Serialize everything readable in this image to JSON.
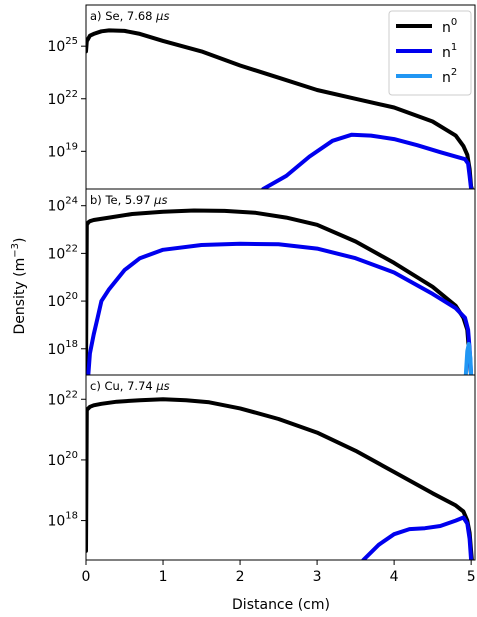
{
  "figure": {
    "ylabel": "Density (m",
    "ylabel_sup": "−3",
    "ylabel_close": ")",
    "xlabel": "Distance (cm)"
  },
  "legend": {
    "placement": "top-right of panel a",
    "entries": [
      {
        "base": "n",
        "sup": "0",
        "color": "#000000"
      },
      {
        "base": "n",
        "sup": "1",
        "color": "#0000ee"
      },
      {
        "base": "n",
        "sup": "2",
        "color": "#2196f3"
      }
    ]
  },
  "chart_data": [
    {
      "type": "line",
      "panel_label": "a) Se, 7.68 ",
      "panel_label_unit": "μs",
      "yscale": "log",
      "xlim": [
        0,
        5.05
      ],
      "ylog10_range": [
        16.85,
        27.35
      ],
      "yticks": [
        {
          "base": "10",
          "exp": "25",
          "value_log10": 25
        },
        {
          "base": "10",
          "exp": "22",
          "value_log10": 22
        },
        {
          "base": "10",
          "exp": "19",
          "value_log10": 19
        }
      ],
      "xticks": [],
      "series": [
        {
          "name": "n⁰",
          "color": "#000000",
          "x": [
            0.0,
            0.01,
            0.02,
            0.05,
            0.1,
            0.2,
            0.3,
            0.5,
            0.7,
            1.0,
            1.5,
            2.0,
            2.5,
            3.0,
            3.5,
            4.0,
            4.5,
            4.8,
            4.9,
            4.95,
            4.98,
            5.0,
            5.01
          ],
          "y_log10": [
            24.7,
            25.3,
            25.35,
            25.6,
            25.7,
            25.85,
            25.9,
            25.87,
            25.7,
            25.3,
            24.7,
            23.9,
            23.2,
            22.5,
            22.0,
            21.5,
            20.7,
            19.9,
            19.3,
            18.8,
            18.0,
            17.0,
            16.85
          ]
        },
        {
          "name": "n¹",
          "color": "#0000ee",
          "x": [
            2.3,
            2.6,
            2.9,
            3.2,
            3.45,
            3.7,
            4.0,
            4.3,
            4.6,
            4.8,
            4.92,
            4.96,
            4.98,
            5.0
          ],
          "y_log10": [
            16.85,
            17.6,
            18.7,
            19.6,
            19.95,
            19.9,
            19.7,
            19.35,
            18.95,
            18.7,
            18.55,
            18.3,
            17.6,
            16.85
          ]
        }
      ]
    },
    {
      "type": "line",
      "panel_label": "b) Te, 5.97 ",
      "panel_label_unit": "μs",
      "yscale": "log",
      "xlim": [
        0,
        5.05
      ],
      "ylog10_range": [
        16.9,
        24.7
      ],
      "yticks": [
        {
          "base": "10",
          "exp": "24",
          "value_log10": 24
        },
        {
          "base": "10",
          "exp": "22",
          "value_log10": 22
        },
        {
          "base": "10",
          "exp": "20",
          "value_log10": 20
        },
        {
          "base": "10",
          "exp": "18",
          "value_log10": 18
        }
      ],
      "xticks": [],
      "series": [
        {
          "name": "n⁰",
          "color": "#000000",
          "x": [
            0.0,
            0.01,
            0.03,
            0.05,
            0.1,
            0.3,
            0.6,
            1.0,
            1.4,
            1.8,
            2.2,
            2.6,
            3.0,
            3.5,
            4.0,
            4.5,
            4.8,
            4.9,
            4.95,
            4.97,
            4.99,
            5.0
          ],
          "y_log10": [
            17.0,
            23.2,
            23.3,
            23.35,
            23.4,
            23.5,
            23.65,
            23.75,
            23.8,
            23.78,
            23.7,
            23.5,
            23.2,
            22.5,
            21.6,
            20.6,
            19.8,
            19.3,
            18.8,
            18.0,
            17.2,
            16.9
          ]
        },
        {
          "name": "n¹",
          "color": "#0000ee",
          "x": [
            0.03,
            0.05,
            0.1,
            0.15,
            0.2,
            0.3,
            0.5,
            0.7,
            1.0,
            1.5,
            2.0,
            2.5,
            3.0,
            3.5,
            4.0,
            4.5,
            4.8,
            4.92,
            4.96,
            4.98,
            5.0
          ],
          "y_log10": [
            16.9,
            17.8,
            18.6,
            19.3,
            20.0,
            20.5,
            21.3,
            21.8,
            22.15,
            22.35,
            22.4,
            22.38,
            22.2,
            21.8,
            21.2,
            20.3,
            19.7,
            19.3,
            18.8,
            18.0,
            16.9
          ]
        },
        {
          "name": "n²",
          "color": "#2196f3",
          "x": [
            4.93,
            4.95,
            4.97,
            4.99,
            5.0
          ],
          "y_log10": [
            16.9,
            17.9,
            18.2,
            17.6,
            16.9
          ]
        }
      ]
    },
    {
      "type": "line",
      "panel_label": "c) Cu, 7.74 ",
      "panel_label_unit": "μs",
      "yscale": "log",
      "xlim": [
        0,
        5.05
      ],
      "ylog10_range": [
        16.7,
        22.8
      ],
      "yticks": [
        {
          "base": "10",
          "exp": "22",
          "value_log10": 22
        },
        {
          "base": "10",
          "exp": "20",
          "value_log10": 20
        },
        {
          "base": "10",
          "exp": "18",
          "value_log10": 18
        }
      ],
      "xticks": [
        {
          "label": "0",
          "value": 0
        },
        {
          "label": "1",
          "value": 1
        },
        {
          "label": "2",
          "value": 2
        },
        {
          "label": "3",
          "value": 3
        },
        {
          "label": "4",
          "value": 4
        },
        {
          "label": "5",
          "value": 5
        }
      ],
      "series": [
        {
          "name": "n⁰",
          "color": "#000000",
          "x": [
            0.0,
            0.01,
            0.03,
            0.05,
            0.1,
            0.2,
            0.4,
            0.7,
            1.0,
            1.3,
            1.6,
            2.0,
            2.5,
            3.0,
            3.5,
            4.0,
            4.5,
            4.8,
            4.9,
            4.95,
            4.98,
            5.0,
            5.01
          ],
          "y_log10": [
            17.0,
            21.65,
            21.7,
            21.75,
            21.8,
            21.85,
            21.92,
            21.97,
            22.0,
            21.97,
            21.9,
            21.7,
            21.35,
            20.9,
            20.3,
            19.6,
            18.9,
            18.5,
            18.3,
            18.0,
            17.6,
            17.0,
            16.7
          ]
        },
        {
          "name": "n¹",
          "color": "#0000ee",
          "x": [
            3.6,
            3.8,
            4.0,
            4.2,
            4.4,
            4.6,
            4.8,
            4.9,
            4.95,
            4.98,
            5.0
          ],
          "y_log10": [
            16.7,
            17.2,
            17.55,
            17.72,
            17.75,
            17.82,
            18.0,
            18.1,
            17.9,
            17.4,
            16.7
          ]
        }
      ]
    }
  ]
}
